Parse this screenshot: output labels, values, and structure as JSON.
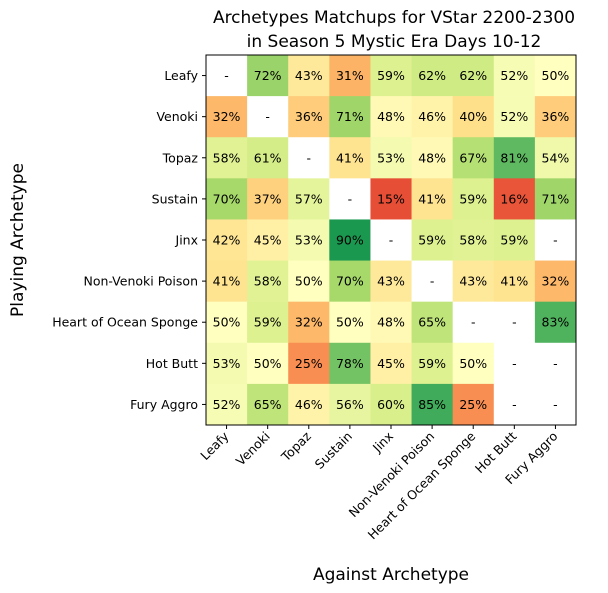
{
  "chart_data": {
    "type": "heatmap",
    "title": [
      "Archetypes Matchups for VStar 2200-2300",
      "in Season 5 Mystic Era Days 10-12"
    ],
    "xlabel": "Against Archetype",
    "ylabel": "Playing Archetype",
    "rows": [
      "Leafy",
      "Venoki",
      "Topaz",
      "Sustain",
      "Jinx",
      "Non-Venoki Poison",
      "Heart of Ocean Sponge",
      "Hot Butt",
      "Fury Aggro"
    ],
    "columns": [
      "Leafy",
      "Venoki",
      "Topaz",
      "Sustain",
      "Jinx",
      "Non-Venoki Poison",
      "Heart of Ocean Sponge",
      "Hot Butt",
      "Fury Aggro"
    ],
    "values": [
      [
        null,
        72,
        43,
        31,
        59,
        62,
        62,
        52,
        50
      ],
      [
        32,
        null,
        36,
        71,
        48,
        46,
        40,
        52,
        36
      ],
      [
        58,
        61,
        null,
        41,
        53,
        48,
        67,
        81,
        54
      ],
      [
        70,
        37,
        57,
        null,
        15,
        41,
        59,
        16,
        71
      ],
      [
        42,
        45,
        53,
        90,
        null,
        59,
        58,
        59,
        null
      ],
      [
        41,
        58,
        50,
        70,
        43,
        null,
        43,
        41,
        32
      ],
      [
        50,
        59,
        32,
        50,
        48,
        65,
        null,
        null,
        83
      ],
      [
        53,
        50,
        25,
        78,
        45,
        59,
        50,
        null,
        null
      ],
      [
        52,
        65,
        46,
        56,
        60,
        85,
        25,
        null,
        null
      ]
    ],
    "missing_label": "-",
    "value_suffix": "%",
    "colormap": "RdYlGn",
    "range": [
      0,
      100
    ]
  }
}
